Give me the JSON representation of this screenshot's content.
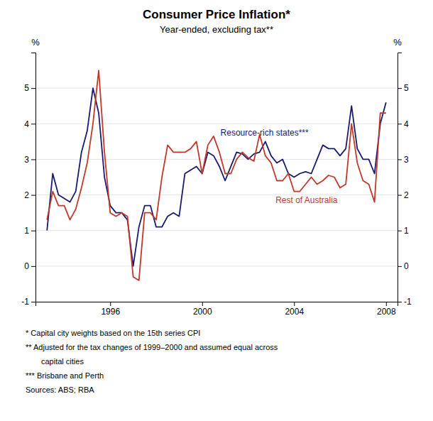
{
  "chart_data": {
    "type": "line",
    "title": "Consumer Price Inflation*",
    "subtitle": "Year-ended, excluding tax**",
    "ylabel": "%",
    "y2label": "%",
    "x": [
      1993.25,
      1993.5,
      1993.75,
      1994.0,
      1994.25,
      1994.5,
      1994.75,
      1995.0,
      1995.25,
      1995.5,
      1995.75,
      1996.0,
      1996.25,
      1996.5,
      1996.75,
      1997.0,
      1997.25,
      1997.5,
      1997.75,
      1998.0,
      1998.25,
      1998.5,
      1998.75,
      1999.0,
      1999.25,
      1999.5,
      1999.75,
      2000.0,
      2000.25,
      2000.5,
      2000.75,
      2001.0,
      2001.25,
      2001.5,
      2001.75,
      2002.0,
      2002.25,
      2002.5,
      2002.75,
      2003.0,
      2003.25,
      2003.5,
      2003.75,
      2004.0,
      2004.25,
      2004.5,
      2004.75,
      2005.0,
      2005.25,
      2005.5,
      2005.75,
      2006.0,
      2006.25,
      2006.5,
      2006.75,
      2007.0,
      2007.25,
      2007.5,
      2007.75,
      2008.0
    ],
    "series": [
      {
        "name": "Resource-rich states***",
        "color": "#1a1a6e",
        "values": [
          1.0,
          2.6,
          2.0,
          1.9,
          1.8,
          2.1,
          3.2,
          3.8,
          5.0,
          4.3,
          2.5,
          1.7,
          1.5,
          1.5,
          1.3,
          0.0,
          1.1,
          1.7,
          1.7,
          1.1,
          1.1,
          1.4,
          1.5,
          1.4,
          2.6,
          2.7,
          2.8,
          2.6,
          3.2,
          3.1,
          2.8,
          2.4,
          2.8,
          3.2,
          3.15,
          3.0,
          3.15,
          3.2,
          3.5,
          3.1,
          2.9,
          3.0,
          2.6,
          2.5,
          2.6,
          2.65,
          2.6,
          3.0,
          3.4,
          3.3,
          3.3,
          3.1,
          3.3,
          4.5,
          3.3,
          3.0,
          3.0,
          2.6,
          4.0,
          4.6
        ]
      },
      {
        "name": "Rest of Australia",
        "color": "#c0392b",
        "values": [
          1.3,
          2.1,
          1.7,
          1.7,
          1.3,
          1.6,
          2.2,
          2.9,
          4.0,
          5.5,
          3.2,
          1.5,
          1.4,
          1.5,
          1.4,
          -0.3,
          -0.4,
          1.5,
          1.5,
          1.3,
          2.5,
          3.4,
          3.2,
          3.2,
          3.2,
          3.3,
          3.5,
          2.6,
          3.4,
          3.65,
          3.2,
          2.6,
          2.6,
          3.0,
          3.2,
          3.05,
          2.95,
          3.7,
          3.1,
          2.9,
          2.4,
          2.4,
          2.6,
          2.1,
          2.1,
          2.3,
          2.5,
          2.3,
          2.4,
          2.55,
          2.5,
          2.2,
          2.3,
          4.0,
          2.9,
          2.4,
          2.3,
          1.8,
          4.3,
          4.3
        ]
      }
    ],
    "xlim": [
      1992.75,
      2008.5
    ],
    "xticks": [
      1996,
      2000,
      2004,
      2008
    ],
    "ylim": [
      -1,
      6
    ],
    "yticks": [
      -1,
      0,
      1,
      2,
      3,
      4,
      5
    ],
    "y2lim": [
      -1,
      6
    ],
    "y2ticks": [
      -1,
      0,
      1,
      2,
      3,
      4,
      5
    ],
    "grid": true,
    "footnotes": [
      "* Capital city weights based on the 15th series CPI",
      "** Adjusted for the tax changes of 1999–2000 and assumed equal across",
      "capital cities",
      "*** Brisbane and Perth",
      "Sources: ABS; RBA"
    ]
  }
}
